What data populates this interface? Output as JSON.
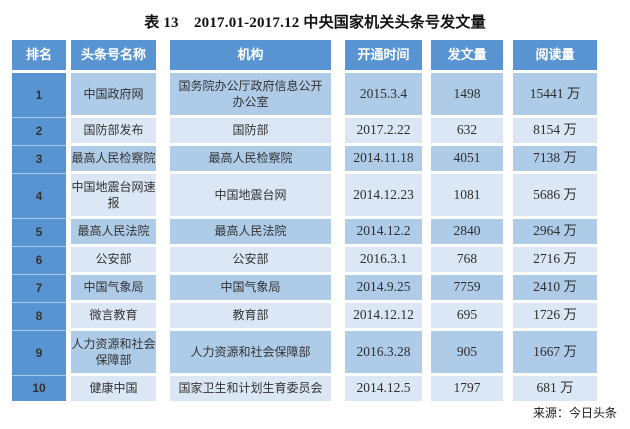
{
  "title": "表 13　2017.01-2017.12 中央国家机关头条号发文量",
  "source_note": "来源：今日头条",
  "colors": {
    "header_blue": "#5894D1",
    "row_dark": "#AECBE8",
    "row_light": "#DBE7F4"
  },
  "chart_data": {
    "type": "table",
    "title": "表 13　2017.01-2017.12 中央国家机关头条号发文量",
    "columns": [
      "排名",
      "头条号名称",
      "机构",
      "开通时间",
      "发文量",
      "阅读量"
    ],
    "rows": [
      [
        "1",
        "中国政府网",
        "国务院办公厅政府信息公开办公室",
        "2015.3.4",
        "1498",
        "15441 万"
      ],
      [
        "2",
        "国防部发布",
        "国防部",
        "2017.2.22",
        "632",
        "8154 万"
      ],
      [
        "3",
        "最高人民检察院",
        "最高人民检察院",
        "2014.11.18",
        "4051",
        "7138 万"
      ],
      [
        "4",
        "中国地震台网速报",
        "中国地震台网",
        "2014.12.23",
        "1081",
        "5686 万"
      ],
      [
        "5",
        "最高人民法院",
        "最高人民法院",
        "2014.12.2",
        "2840",
        "2964 万"
      ],
      [
        "6",
        "公安部",
        "公安部",
        "2016.3.1",
        "768",
        "2716 万"
      ],
      [
        "7",
        "中国气象局",
        "中国气象局",
        "2014.9.25",
        "7759",
        "2410 万"
      ],
      [
        "8",
        "微言教育",
        "教育部",
        "2014.12.12",
        "695",
        "1726 万"
      ],
      [
        "9",
        "人力资源和社会保障部",
        "人力资源和社会保障部",
        "2016.3.28",
        "905",
        "1667 万"
      ],
      [
        "10",
        "健康中国",
        "国家卫生和计划生育委员会",
        "2014.12.5",
        "1797",
        "681 万"
      ]
    ],
    "source": "来源：今日头条"
  }
}
